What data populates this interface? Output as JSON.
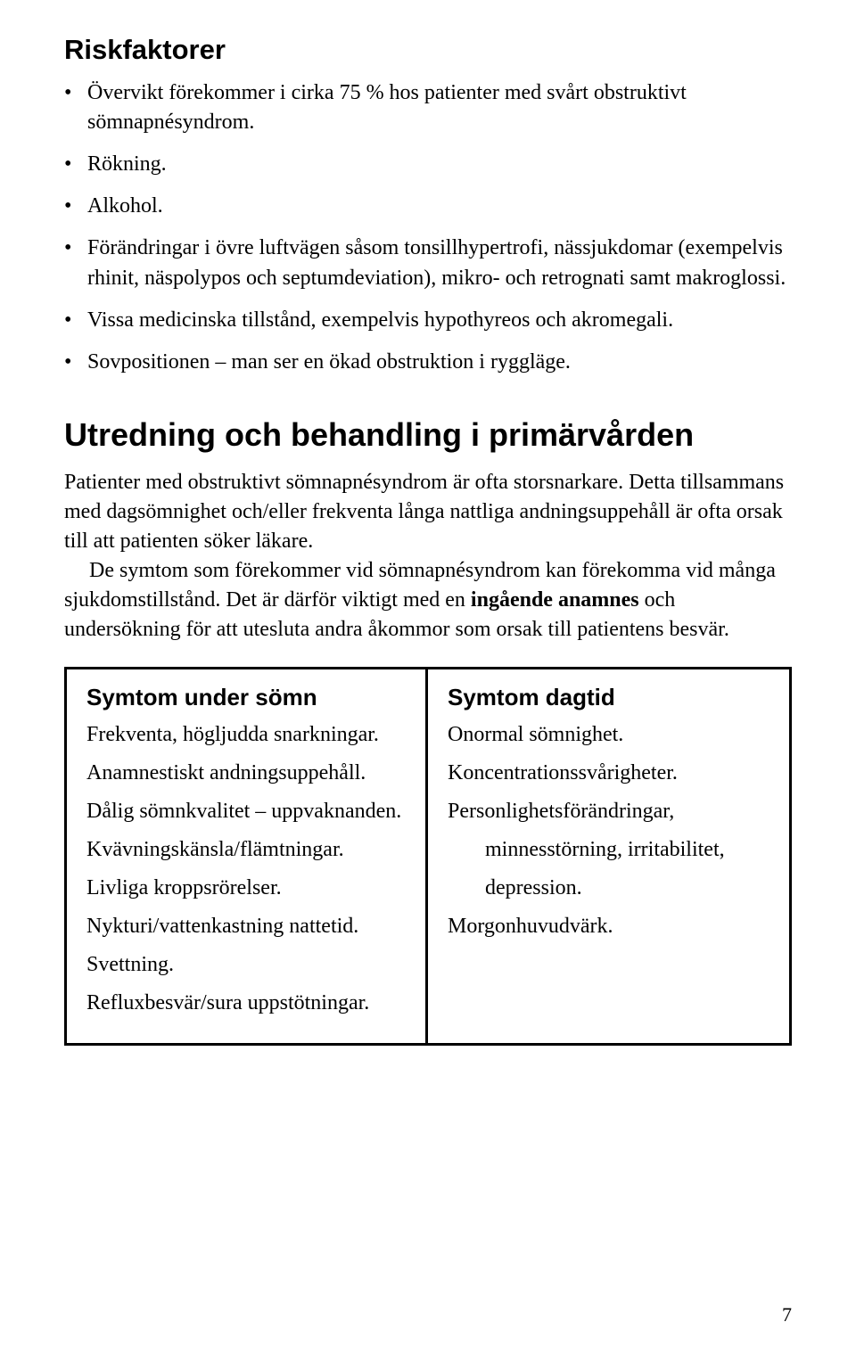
{
  "riskfaktorer": {
    "heading": "Riskfaktorer",
    "items": [
      "Övervikt förekommer i cirka 75 % hos patienter med svårt obstruktivt sömnapnésyndrom.",
      "Rökning.",
      "Alkohol.",
      "Förändringar i övre luftvägen såsom tonsillhypertrofi, nässjukdomar (exempelvis rhinit, näspolypos och septumdeviation), mikro- och retrognati samt makroglossi.",
      "Vissa medicinska tillstånd, exempelvis hypothyreos och akromegali.",
      "Sovpositionen – man ser en ökad obstruktion i ryggläge."
    ]
  },
  "utredning": {
    "heading": "Utredning och behandling i primärvården",
    "para1": "Patienter med obstruktivt sömnapnésyndrom är ofta storsnarkare. Detta tillsammans med dagsömnighet och/eller frekventa långa nattliga andningsuppehåll är ofta orsak till att patienten söker läkare.",
    "para2_pre": "De symtom som förekommer vid sömnapnésyndrom kan förekomma vid många sjukdomstillstånd. Det är därför viktigt med en ",
    "para2_strong": "ingående anamnes",
    "para2_post": " och undersökning för att utesluta andra åkommor som orsak till patientens besvär."
  },
  "symtom_somn": {
    "heading": "Symtom under sömn",
    "items": [
      "Frekventa, högljudda snarkningar.",
      "Anamnestiskt andningsuppehåll.",
      "Dålig sömnkvalitet – uppvaknanden.",
      "Kvävningskänsla/flämtningar.",
      "Livliga kroppsrörelser.",
      "Nykturi/vattenkastning nattetid.",
      "Svettning.",
      "Refluxbesvär/sura uppstötningar."
    ]
  },
  "symtom_dagtid": {
    "heading": "Symtom dagtid",
    "items": [
      {
        "text": "Onormal sömnighet.",
        "indent": false
      },
      {
        "text": "Koncentrationssvårigheter.",
        "indent": false
      },
      {
        "text": "Personlighetsförändringar,",
        "indent": false
      },
      {
        "text": "minnesstörning, irritabilitet,",
        "indent": true
      },
      {
        "text": "depression.",
        "indent": true
      },
      {
        "text": "Morgonhuvudvärk.",
        "indent": false
      }
    ]
  },
  "page_number": "7"
}
